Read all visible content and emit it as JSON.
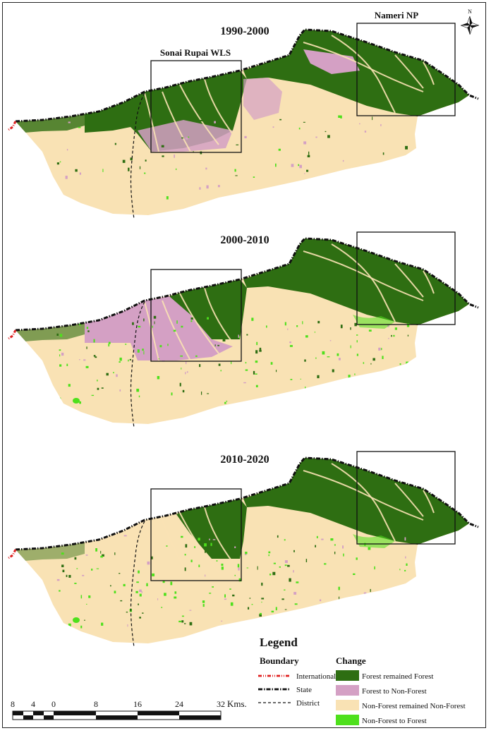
{
  "panels": [
    {
      "period": "1990-2000",
      "state": "p1"
    },
    {
      "period": "2000-2010",
      "state": "p2"
    },
    {
      "period": "2010-2020",
      "state": "p3"
    }
  ],
  "areas": {
    "sonai": "Sonai Rupai WLS",
    "nameri": "Nameri NP"
  },
  "north": "N",
  "legend": {
    "title": "Legend",
    "boundary_heading": "Boundary",
    "change_heading": "Change",
    "boundary": [
      {
        "label": "International",
        "color": "#e02020",
        "style": "dash-dot-dot"
      },
      {
        "label": "State",
        "color": "#111111",
        "style": "dash-dot"
      },
      {
        "label": "District",
        "color": "#111111",
        "style": "dashed"
      }
    ],
    "change": [
      {
        "label": "Forest remained Forest",
        "color": "#2e6e12"
      },
      {
        "label": "Forest to Non-Forest",
        "color": "#d4a0c4"
      },
      {
        "label": "Non-Forest remained Non-Forest",
        "color": "#f9e2b4"
      },
      {
        "label": "Non-Forest to Forest",
        "color": "#4ee01c"
      }
    ]
  },
  "scale": {
    "ticks": [
      "8",
      "4",
      "0",
      "8",
      "16",
      "24",
      "32"
    ],
    "unit": "Kms."
  }
}
